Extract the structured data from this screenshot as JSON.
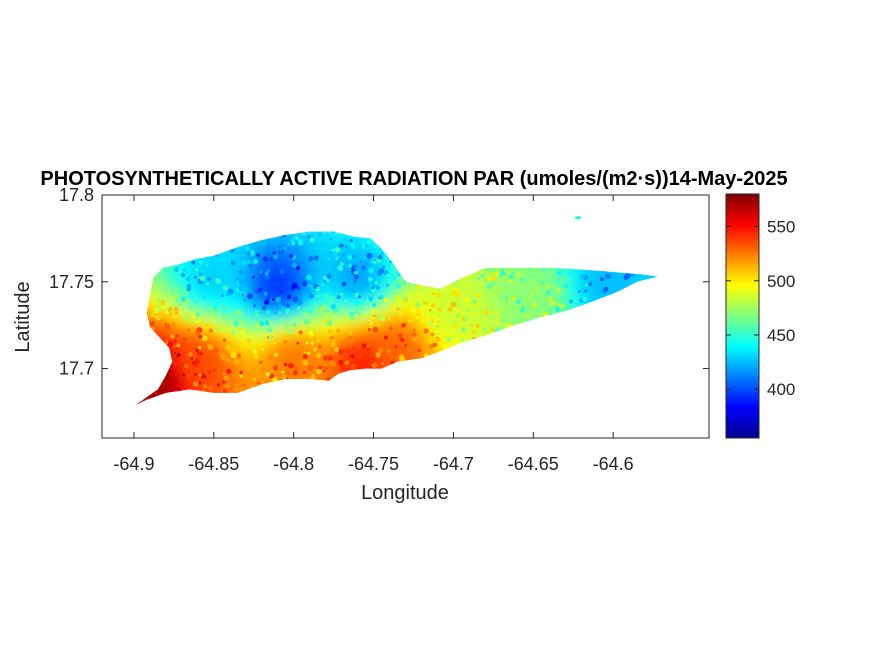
{
  "chart_data": {
    "type": "heatmap",
    "title": "PHOTOSYNTHETICALLY ACTIVE RADIATION PAR (umoles/(m2·s))14-May-2025",
    "xlabel": "Longitude",
    "ylabel": "Latitude",
    "xlim": [
      -64.92,
      -64.54
    ],
    "ylim": [
      17.66,
      17.8
    ],
    "xticks": [
      -64.9,
      -64.85,
      -64.8,
      -64.75,
      -64.7,
      -64.65,
      -64.6
    ],
    "xtick_labels": [
      "-64.9",
      "-64.85",
      "-64.8",
      "-64.75",
      "-64.7",
      "-64.65",
      "-64.6"
    ],
    "yticks": [
      17.7,
      17.75,
      17.8
    ],
    "ytick_labels": [
      "17.7",
      "17.75",
      "17.8"
    ],
    "colormap": "jet",
    "clim": [
      355,
      580
    ],
    "colorbar_ticks": [
      400,
      450,
      500,
      550
    ],
    "colorbar_tick_labels": [
      "400",
      "450",
      "500",
      "550"
    ],
    "grid": false,
    "region_outline_lonlat": [
      [
        -64.899,
        17.679
      ],
      [
        -64.885,
        17.688
      ],
      [
        -64.88,
        17.696
      ],
      [
        -64.876,
        17.704
      ],
      [
        -64.878,
        17.712
      ],
      [
        -64.884,
        17.718
      ],
      [
        -64.89,
        17.724
      ],
      [
        -64.892,
        17.732
      ],
      [
        -64.89,
        17.742
      ],
      [
        -64.888,
        17.752
      ],
      [
        -64.882,
        17.758
      ],
      [
        -64.872,
        17.76
      ],
      [
        -64.862,
        17.763
      ],
      [
        -64.85,
        17.765
      ],
      [
        -64.835,
        17.77
      ],
      [
        -64.82,
        17.774
      ],
      [
        -64.805,
        17.777
      ],
      [
        -64.79,
        17.779
      ],
      [
        -64.775,
        17.779
      ],
      [
        -64.762,
        17.776
      ],
      [
        -64.752,
        17.775
      ],
      [
        -64.745,
        17.769
      ],
      [
        -64.738,
        17.761
      ],
      [
        -64.73,
        17.75
      ],
      [
        -64.72,
        17.748
      ],
      [
        -64.708,
        17.746
      ],
      [
        -64.695,
        17.752
      ],
      [
        -64.68,
        17.758
      ],
      [
        -64.665,
        17.758
      ],
      [
        -64.65,
        17.758
      ],
      [
        -64.635,
        17.758
      ],
      [
        -64.62,
        17.757
      ],
      [
        -64.605,
        17.756
      ],
      [
        -64.592,
        17.755
      ],
      [
        -64.58,
        17.754
      ],
      [
        -64.572,
        17.753
      ],
      [
        -64.585,
        17.75
      ],
      [
        -64.598,
        17.744
      ],
      [
        -64.612,
        17.739
      ],
      [
        -64.63,
        17.733
      ],
      [
        -64.648,
        17.729
      ],
      [
        -64.665,
        17.724
      ],
      [
        -64.68,
        17.719
      ],
      [
        -64.695,
        17.715
      ],
      [
        -64.708,
        17.71
      ],
      [
        -64.72,
        17.706
      ],
      [
        -64.735,
        17.704
      ],
      [
        -64.745,
        17.7
      ],
      [
        -64.755,
        17.7
      ],
      [
        -64.765,
        17.699
      ],
      [
        -64.772,
        17.697
      ],
      [
        -64.778,
        17.693
      ],
      [
        -64.79,
        17.694
      ],
      [
        -64.805,
        17.694
      ],
      [
        -64.82,
        17.691
      ],
      [
        -64.835,
        17.686
      ],
      [
        -64.85,
        17.686
      ],
      [
        -64.865,
        17.688
      ],
      [
        -64.88,
        17.686
      ],
      [
        -64.892,
        17.682
      ]
    ],
    "islet_lonlat": [
      -64.622,
      17.787
    ],
    "value_pattern": [
      {
        "area": "south-west coast",
        "lon": -64.885,
        "lat": 17.695,
        "value": 575
      },
      {
        "area": "south-west plain",
        "lon": -64.86,
        "lat": 17.703,
        "value": 535
      },
      {
        "area": "south coast",
        "lon": -64.8,
        "lat": 17.705,
        "value": 525
      },
      {
        "area": "south-central coast",
        "lon": -64.757,
        "lat": 17.703,
        "value": 545
      },
      {
        "area": "south-east of centre",
        "lon": -64.735,
        "lat": 17.712,
        "value": 530
      },
      {
        "area": "north-west interior",
        "lon": -64.81,
        "lat": 17.748,
        "value": 395
      },
      {
        "area": "north-west ridge",
        "lon": -64.85,
        "lat": 17.752,
        "value": 430
      },
      {
        "area": "north-central",
        "lon": -64.76,
        "lat": 17.752,
        "value": 420
      },
      {
        "area": "central",
        "lon": -64.7,
        "lat": 17.732,
        "value": 485
      },
      {
        "area": "east",
        "lon": -64.65,
        "lat": 17.742,
        "value": 470
      },
      {
        "area": "east end",
        "lon": -64.605,
        "lat": 17.749,
        "value": 425
      }
    ]
  }
}
